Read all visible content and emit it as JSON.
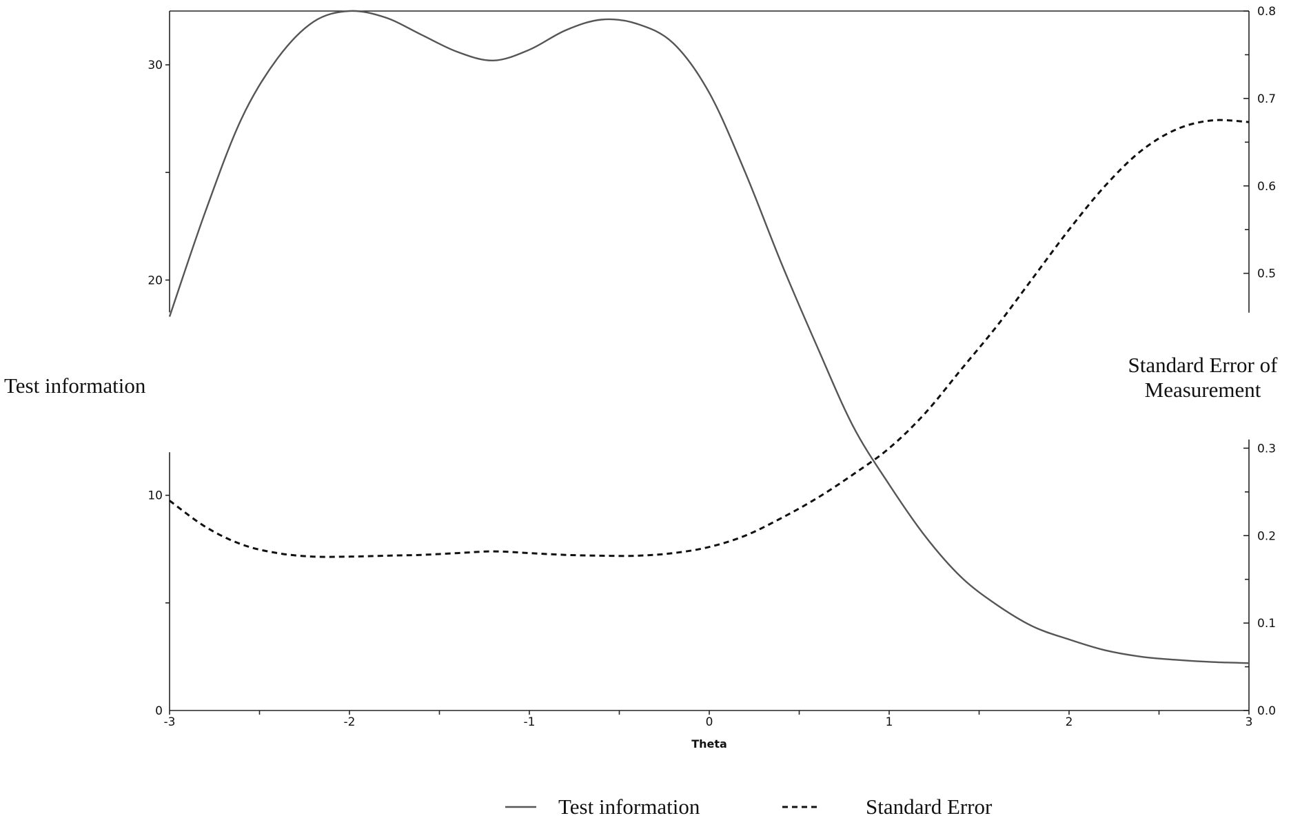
{
  "chart_data": {
    "type": "line",
    "xlabel": "Theta",
    "ylabel_left": "Test information",
    "ylabel_right_lines": [
      "Standard Error of",
      "Measurement"
    ],
    "x_range": [
      -3,
      3
    ],
    "x_ticks": [
      -3,
      -2,
      -1,
      0,
      1,
      2,
      3
    ],
    "y_left_range": [
      0,
      32.5
    ],
    "y_left_ticks": [
      0,
      10,
      20,
      30
    ],
    "y_right_range": [
      0,
      0.8
    ],
    "y_right_ticks": [
      0.0,
      0.1,
      0.2,
      0.3,
      0.5,
      0.6,
      0.7,
      0.8
    ],
    "y_right_tick_labels": [
      "0.0",
      "0.1",
      "0.2",
      "0.3",
      "0.5",
      "0.6",
      "0.7",
      "0.8"
    ],
    "right_axis_break": [
      0.31,
      0.455
    ],
    "left_axis_break": [
      12,
      18.5
    ],
    "grid": false,
    "legend_position": "bottom-center",
    "series": [
      {
        "name": "Test information",
        "axis": "left",
        "style": "solid",
        "color": "#555555",
        "x": [
          -3.0,
          -2.8,
          -2.6,
          -2.4,
          -2.2,
          -2.0,
          -1.8,
          -1.6,
          -1.4,
          -1.2,
          -1.0,
          -0.8,
          -0.6,
          -0.4,
          -0.2,
          0.0,
          0.2,
          0.4,
          0.6,
          0.8,
          1.0,
          1.2,
          1.4,
          1.6,
          1.8,
          2.0,
          2.2,
          2.4,
          2.6,
          2.8,
          3.0
        ],
        "values": [
          18.3,
          23.2,
          27.5,
          30.3,
          32.0,
          32.5,
          32.2,
          31.4,
          30.6,
          30.2,
          30.7,
          31.6,
          32.1,
          31.9,
          31.0,
          28.7,
          25.0,
          20.8,
          16.9,
          13.2,
          10.5,
          8.1,
          6.2,
          4.9,
          3.9,
          3.3,
          2.8,
          2.5,
          2.35,
          2.25,
          2.2
        ]
      },
      {
        "name": "Standard Error",
        "axis": "right",
        "style": "dashed",
        "color": "#111111",
        "x": [
          -3.0,
          -2.8,
          -2.6,
          -2.4,
          -2.2,
          -2.0,
          -1.8,
          -1.6,
          -1.4,
          -1.2,
          -1.0,
          -0.8,
          -0.6,
          -0.4,
          -0.2,
          0.0,
          0.2,
          0.4,
          0.6,
          0.8,
          1.0,
          1.2,
          1.4,
          1.6,
          1.8,
          2.0,
          2.2,
          2.4,
          2.6,
          2.8,
          3.0
        ],
        "values": [
          0.24,
          0.21,
          0.19,
          0.18,
          0.176,
          0.176,
          0.177,
          0.178,
          0.18,
          0.182,
          0.18,
          0.178,
          0.177,
          0.177,
          0.18,
          0.187,
          0.2,
          0.22,
          0.243,
          0.27,
          0.3,
          0.34,
          0.39,
          0.44,
          0.495,
          0.55,
          0.6,
          0.64,
          0.665,
          0.675,
          0.673
        ]
      }
    ]
  }
}
